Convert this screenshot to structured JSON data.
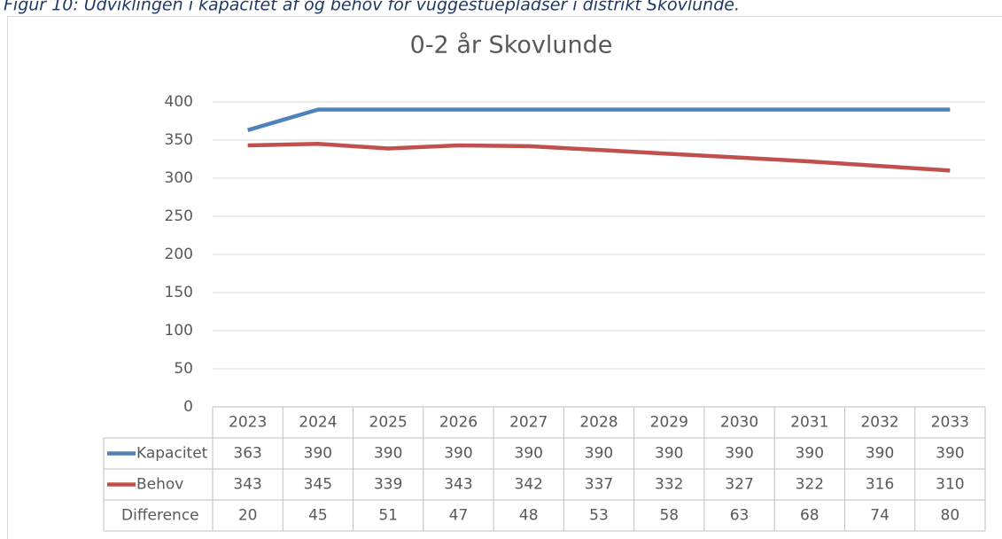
{
  "caption": "Figur 10: Udviklingen i kapacitet af og behov for vuggestuepladser i distrikt Skovlunde.",
  "chart_data": {
    "type": "line",
    "title": "0-2 år Skovlunde",
    "categories": [
      "2023",
      "2024",
      "2025",
      "2026",
      "2027",
      "2028",
      "2029",
      "2030",
      "2031",
      "2032",
      "2033"
    ],
    "series": [
      {
        "name": "Kapacitet",
        "color": "#4f81bd",
        "values": [
          363,
          390,
          390,
          390,
          390,
          390,
          390,
          390,
          390,
          390,
          390
        ]
      },
      {
        "name": "Behov",
        "color": "#c0504d",
        "values": [
          343,
          345,
          339,
          343,
          342,
          337,
          332,
          327,
          322,
          316,
          310
        ]
      },
      {
        "name": "Difference",
        "color": null,
        "values": [
          20,
          45,
          51,
          47,
          48,
          53,
          58,
          63,
          68,
          74,
          80
        ]
      }
    ],
    "ylim": [
      0,
      400
    ],
    "yticks": [
      0,
      50,
      100,
      150,
      200,
      250,
      300,
      350,
      400
    ],
    "grid": true,
    "data_table": true
  }
}
